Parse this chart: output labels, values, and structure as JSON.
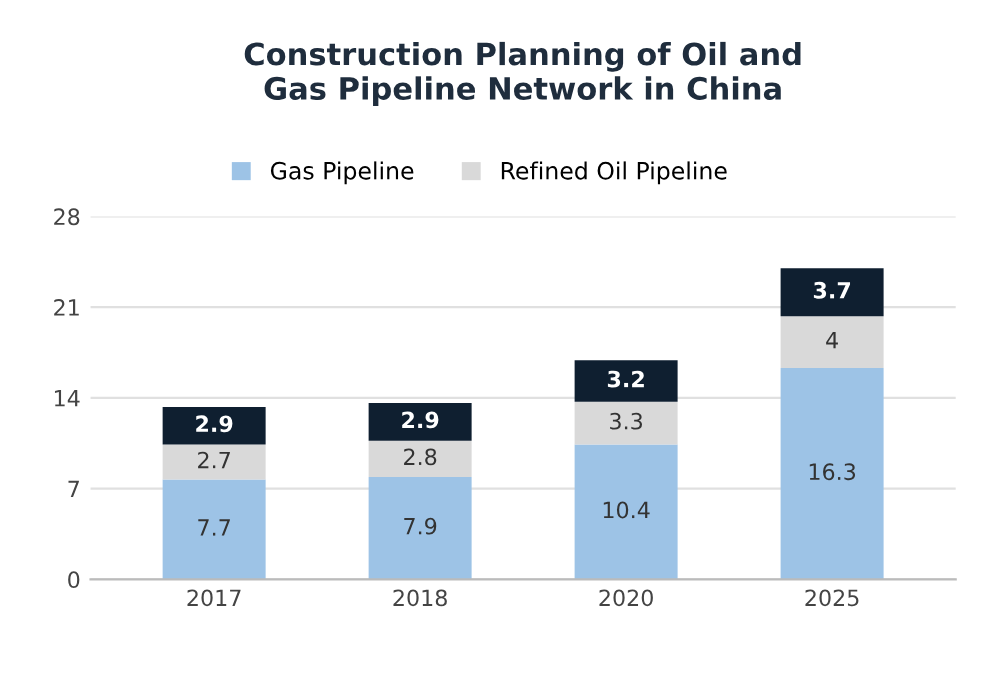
{
  "chart_data": {
    "type": "bar",
    "title": "Construction Planning of Oil and\nGas Pipeline Network in China",
    "categories": [
      "2017",
      "2018",
      "2020",
      "2025"
    ],
    "series": [
      {
        "name": "Gas Pipeline",
        "color": "#9dc3e6",
        "values": [
          7.7,
          7.9,
          10.4,
          16.3
        ]
      },
      {
        "name": "Refined Oil Pipeline",
        "color": "#d9d9d9",
        "values": [
          2.7,
          2.8,
          3.3,
          4
        ]
      },
      {
        "color": "#0f1f30",
        "values": [
          2.9,
          2.9,
          3.2,
          3.7
        ]
      }
    ],
    "stacked": true,
    "ylim": [
      0,
      28
    ],
    "yticks": [
      0,
      7,
      14,
      21,
      28
    ],
    "grid": "y",
    "legend": "top",
    "data_labels": true
  }
}
